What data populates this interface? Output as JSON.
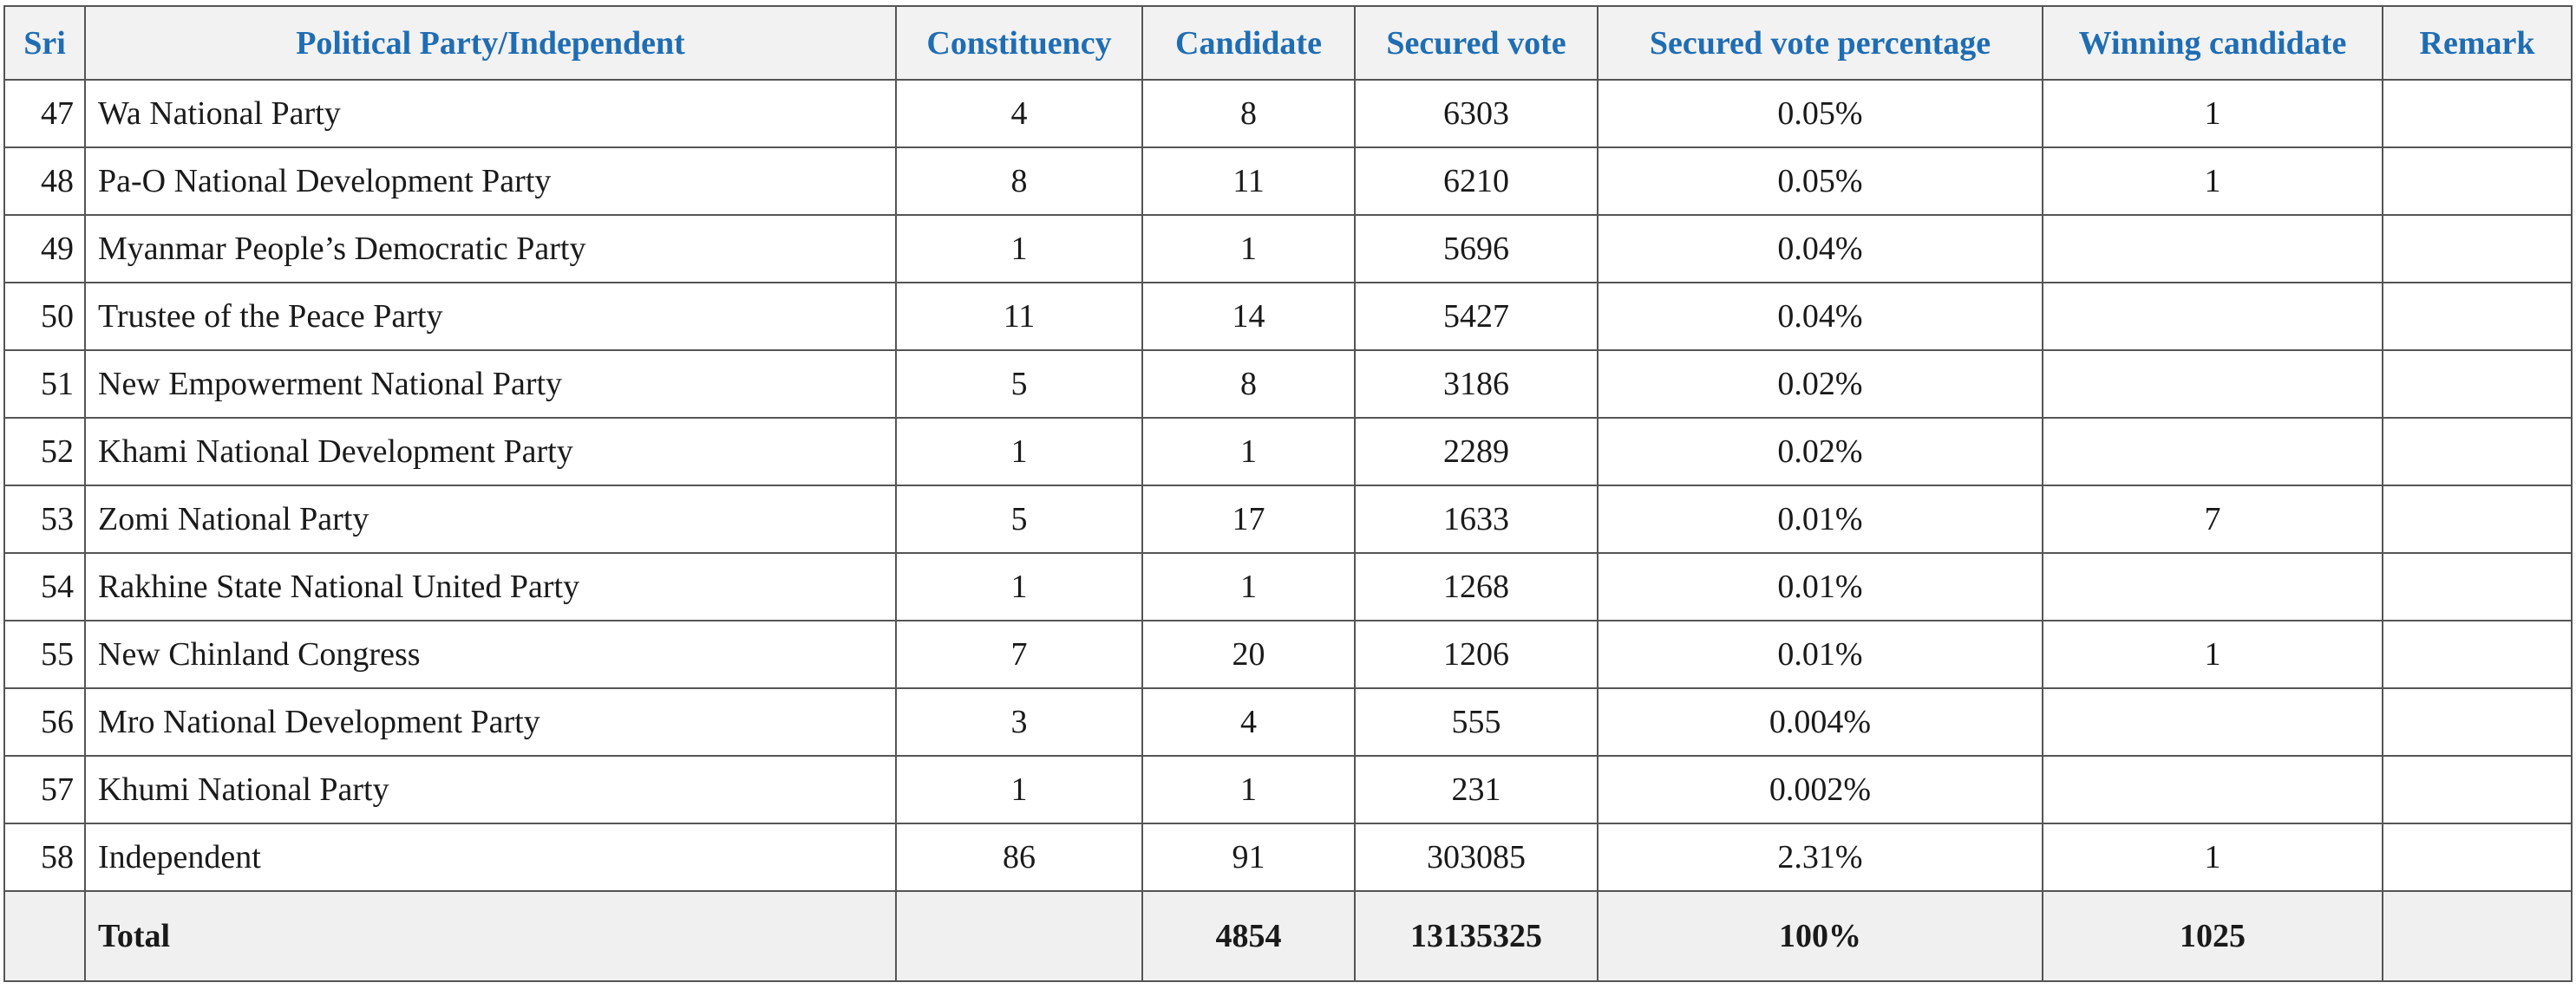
{
  "table": {
    "header": [
      "Sri",
      "Political Party/Independent",
      "Constituency",
      "Candidate",
      "Secured vote",
      "Secured vote percentage",
      "Winning candidate",
      "Remark"
    ],
    "rows": [
      [
        "47",
        "Wa National Party",
        "4",
        "8",
        "6303",
        "0.05%",
        "1",
        null
      ],
      [
        "48",
        "Pa-O National Development Party",
        "8",
        "11",
        "6210",
        "0.05%",
        "1",
        null
      ],
      [
        "49",
        "Myanmar People’s Democratic Party",
        "1",
        "1",
        "5696",
        "0.04%",
        null,
        null
      ],
      [
        "50",
        "Trustee of the Peace Party",
        "11",
        "14",
        "5427",
        "0.04%",
        null,
        null
      ],
      [
        "51",
        "New Empowerment National Party",
        "5",
        "8",
        "3186",
        "0.02%",
        null,
        null
      ],
      [
        "52",
        "Khami National Development Party",
        "1",
        "1",
        "2289",
        "0.02%",
        null,
        null
      ],
      [
        "53",
        "Zomi National Party",
        "5",
        "17",
        "1633",
        "0.01%",
        "7",
        null
      ],
      [
        "54",
        "Rakhine State National United Party",
        "1",
        "1",
        "1268",
        "0.01%",
        null,
        null
      ],
      [
        "55",
        "New Chinland Congress",
        "7",
        "20",
        "1206",
        "0.01%",
        "1",
        null
      ],
      [
        "56",
        "Mro National Development Party",
        "3",
        "4",
        "555",
        "0.004%",
        null,
        null
      ],
      [
        "57",
        "Khumi National Party",
        "1",
        "1",
        "231",
        "0.002%",
        null,
        null
      ],
      [
        "58",
        "Independent",
        "86",
        "91",
        "303085",
        "2.31%",
        "1",
        null
      ]
    ],
    "total": [
      null,
      "Total",
      null,
      "4854",
      "13135325",
      "100%",
      "1025",
      null
    ]
  }
}
